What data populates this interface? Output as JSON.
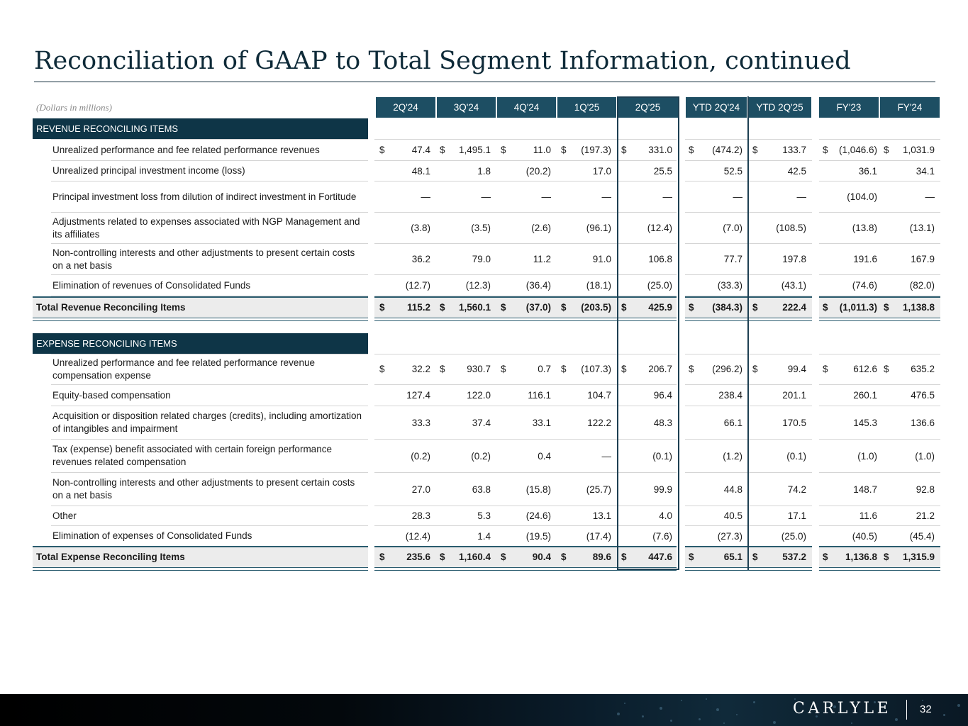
{
  "title": "Reconciliation of GAAP to Total Segment Information, continued",
  "units_note": "(Dollars in millions)",
  "columns": [
    "2Q'24",
    "3Q'24",
    "4Q'24",
    "1Q'25",
    "2Q'25",
    "YTD 2Q'24",
    "YTD 2Q'25",
    "FY'23",
    "FY'24"
  ],
  "revenue": {
    "header": "REVENUE RECONCILING ITEMS",
    "rows": [
      {
        "label": "Unrealized performance and fee related performance revenues",
        "dollar": true,
        "values": [
          "47.4",
          "1,495.1",
          "11.0",
          "(197.3)",
          "331.0",
          "(474.2)",
          "133.7",
          "(1,046.6)",
          "1,031.9"
        ]
      },
      {
        "label": "Unrealized principal investment income (loss)",
        "dollar": false,
        "values": [
          "48.1",
          "1.8",
          "(20.2)",
          "17.0",
          "25.5",
          "52.5",
          "42.5",
          "36.1",
          "34.1"
        ]
      },
      {
        "label": "Principal investment loss from dilution of indirect investment in Fortitude",
        "dollar": false,
        "values": [
          "—",
          "—",
          "—",
          "—",
          "—",
          "—",
          "—",
          "(104.0)",
          "—"
        ]
      },
      {
        "label": "Adjustments related to expenses associated with NGP Management and its affiliates",
        "dollar": false,
        "values": [
          "(3.8)",
          "(3.5)",
          "(2.6)",
          "(96.1)",
          "(12.4)",
          "(7.0)",
          "(108.5)",
          "(13.8)",
          "(13.1)"
        ]
      },
      {
        "label": "Non-controlling interests and other adjustments to present certain costs on a net basis",
        "dollar": false,
        "values": [
          "36.2",
          "79.0",
          "11.2",
          "91.0",
          "106.8",
          "77.7",
          "197.8",
          "191.6",
          "167.9"
        ]
      },
      {
        "label": "Elimination of revenues of Consolidated Funds",
        "dollar": false,
        "values": [
          "(12.7)",
          "(12.3)",
          "(36.4)",
          "(18.1)",
          "(25.0)",
          "(33.3)",
          "(43.1)",
          "(74.6)",
          "(82.0)"
        ]
      }
    ],
    "total": {
      "label": "Total Revenue Reconciling Items",
      "dollar": true,
      "values": [
        "115.2",
        "1,560.1",
        "(37.0)",
        "(203.5)",
        "425.9",
        "(384.3)",
        "222.4",
        "(1,011.3)",
        "1,138.8"
      ]
    }
  },
  "expense": {
    "header": "EXPENSE RECONCILING ITEMS",
    "rows": [
      {
        "label": "Unrealized performance and fee related performance revenue compensation expense",
        "dollar": true,
        "values": [
          "32.2",
          "930.7",
          "0.7",
          "(107.3)",
          "206.7",
          "(296.2)",
          "99.4",
          "612.6",
          "635.2"
        ]
      },
      {
        "label": "Equity-based compensation",
        "dollar": false,
        "values": [
          "127.4",
          "122.0",
          "116.1",
          "104.7",
          "96.4",
          "238.4",
          "201.1",
          "260.1",
          "476.5"
        ]
      },
      {
        "label": "Acquisition or disposition related charges (credits), including amortization of intangibles and impairment",
        "dollar": false,
        "values": [
          "33.3",
          "37.4",
          "33.1",
          "122.2",
          "48.3",
          "66.1",
          "170.5",
          "145.3",
          "136.6"
        ]
      },
      {
        "label": "Tax (expense) benefit associated with certain foreign performance revenues related compensation",
        "dollar": false,
        "values": [
          "(0.2)",
          "(0.2)",
          "0.4",
          "—",
          "(0.1)",
          "(1.2)",
          "(0.1)",
          "(1.0)",
          "(1.0)"
        ]
      },
      {
        "label": "Non-controlling interests and other adjustments to present certain costs on a net basis",
        "dollar": false,
        "values": [
          "27.0",
          "63.8",
          "(15.8)",
          "(25.7)",
          "99.9",
          "44.8",
          "74.2",
          "148.7",
          "92.8"
        ]
      },
      {
        "label": "Other",
        "dollar": false,
        "values": [
          "28.3",
          "5.3",
          "(24.6)",
          "13.1",
          "4.0",
          "40.5",
          "17.1",
          "11.6",
          "21.2"
        ]
      },
      {
        "label": "Elimination of expenses of Consolidated Funds",
        "dollar": false,
        "values": [
          "(12.4)",
          "1.4",
          "(19.5)",
          "(17.4)",
          "(7.6)",
          "(27.3)",
          "(25.0)",
          "(40.5)",
          "(45.4)"
        ]
      }
    ],
    "total": {
      "label": "Total Expense Reconciling Items",
      "dollar": true,
      "values": [
        "235.6",
        "1,160.4",
        "90.4",
        "89.6",
        "447.6",
        "65.1",
        "537.2",
        "1,136.8",
        "1,315.9"
      ]
    }
  },
  "currency_symbol": "$",
  "brand": "CARLYLE",
  "page_number": "32",
  "colors": {
    "header_fill": "#1d4e63",
    "section_fill": "#0e3547",
    "title": "#0e2a38"
  }
}
